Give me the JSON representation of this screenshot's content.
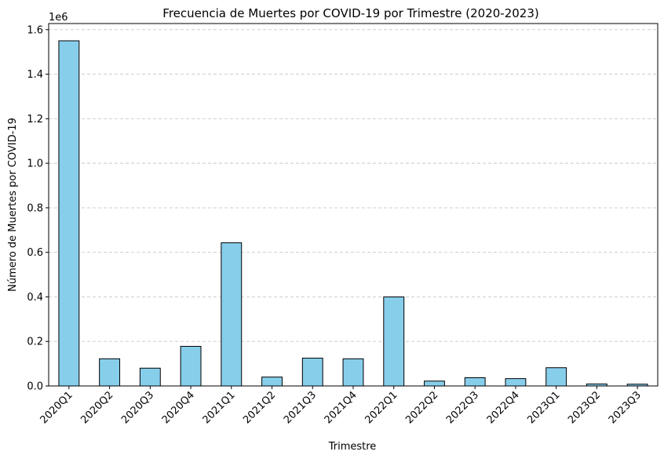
{
  "chart_data": {
    "type": "bar",
    "title": "Frecuencia de Muertes por COVID-19 por Trimestre (2020-2023)",
    "xlabel": "Trimestre",
    "ylabel": "Número de Muertes por COVID-19",
    "y_offset_label": "1e6",
    "categories": [
      "2020Q1",
      "2020Q2",
      "2020Q3",
      "2020Q4",
      "2021Q1",
      "2021Q2",
      "2021Q3",
      "2021Q4",
      "2022Q1",
      "2022Q2",
      "2022Q3",
      "2022Q4",
      "2023Q1",
      "2023Q2",
      "2023Q3"
    ],
    "values": [
      1550000,
      122000,
      80000,
      178000,
      643000,
      40000,
      125000,
      122000,
      400000,
      22000,
      37000,
      33000,
      82000,
      9000,
      8000
    ],
    "ylim": [
      0,
      1627500
    ],
    "y_ticks": [
      0,
      200000,
      400000,
      600000,
      800000,
      1000000,
      1200000,
      1400000,
      1600000
    ],
    "y_tick_labels": [
      "0.0",
      "0.2",
      "0.4",
      "0.6",
      "0.8",
      "1.0",
      "1.2",
      "1.4",
      "1.6"
    ],
    "grid": "y-dashed",
    "colors": {
      "bar_fill": "#87ceeb",
      "bar_edge": "#000000",
      "grid": "#c8c8c8"
    }
  }
}
